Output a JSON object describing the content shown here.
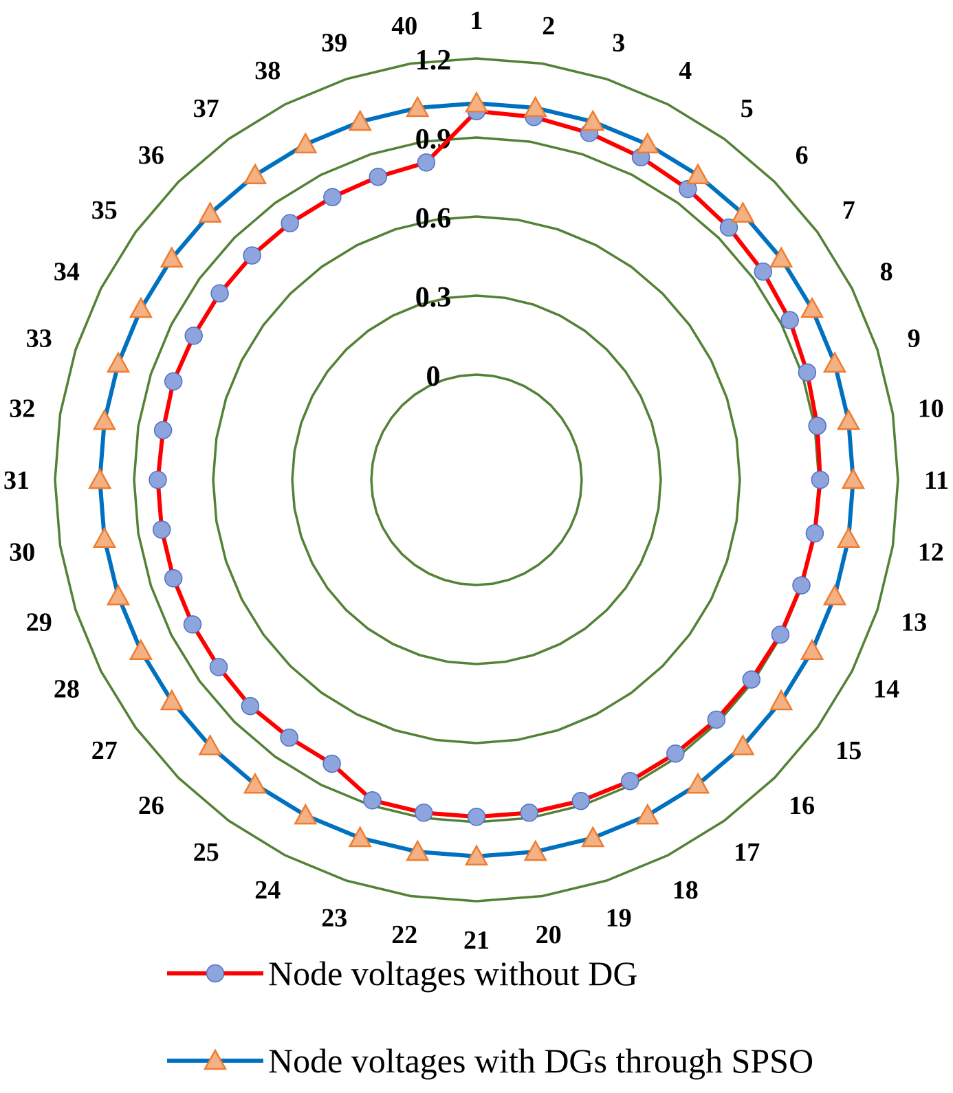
{
  "chart_data": {
    "type": "radar",
    "categories": [
      "1",
      "2",
      "3",
      "4",
      "5",
      "6",
      "7",
      "8",
      "9",
      "10",
      "11",
      "12",
      "13",
      "14",
      "15",
      "16",
      "17",
      "18",
      "19",
      "20",
      "21",
      "22",
      "23",
      "24",
      "25",
      "26",
      "27",
      "28",
      "29",
      "30",
      "31",
      "32",
      "33",
      "34",
      "35",
      "36",
      "37",
      "38",
      "39",
      "40"
    ],
    "radial_axis": {
      "min": 0,
      "max": 1.2,
      "ticks": [
        0,
        0.3,
        0.6,
        0.9,
        1.2
      ],
      "tick_labels": [
        "0",
        "0.3",
        "0.6",
        "0.9",
        "1.2"
      ]
    },
    "grid": true,
    "legend_position": "bottom",
    "series": [
      {
        "name": "Node voltages without DG",
        "line_color": "#ff0000",
        "marker": "circle",
        "marker_color": "#8ea4dc",
        "values": [
          1.0,
          0.995,
          0.985,
          0.975,
          0.965,
          0.955,
          0.945,
          0.935,
          0.92,
          0.91,
          0.905,
          0.9,
          0.897,
          0.895,
          0.89,
          0.888,
          0.885,
          0.884,
          0.882,
          0.88,
          0.88,
          0.88,
          0.88,
          0.81,
          0.81,
          0.815,
          0.81,
          0.81,
          0.81,
          0.81,
          0.81,
          0.805,
          0.81,
          0.805,
          0.805,
          0.805,
          0.805,
          0.805,
          0.81,
          0.82
        ]
      },
      {
        "name": "Node voltages with DGs through SPSO",
        "line_color": "#0070c0",
        "marker": "triangle",
        "marker_color": "#f4b183",
        "values": [
          1.03,
          1.03,
          1.03,
          1.03,
          1.03,
          1.03,
          1.03,
          1.03,
          1.03,
          1.03,
          1.03,
          1.03,
          1.03,
          1.03,
          1.03,
          1.03,
          1.03,
          1.03,
          1.03,
          1.03,
          1.03,
          1.03,
          1.03,
          1.03,
          1.03,
          1.03,
          1.03,
          1.03,
          1.03,
          1.03,
          1.03,
          1.03,
          1.03,
          1.03,
          1.03,
          1.03,
          1.03,
          1.03,
          1.03,
          1.03
        ]
      }
    ]
  }
}
